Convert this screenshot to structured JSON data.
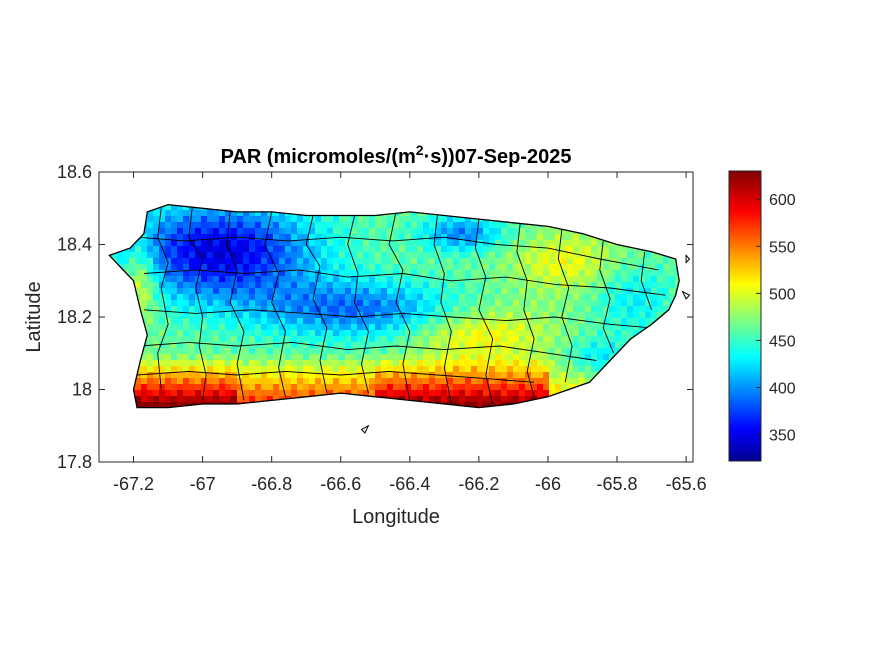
{
  "chart_data": {
    "type": "heatmap",
    "title": {
      "prefix": "PAR (micromoles/(m",
      "superscript": "2",
      "suffix": "·s))07-Sep-2025"
    },
    "xlabel": "Longitude",
    "ylabel": "Latitude",
    "xlim": [
      -67.3,
      -65.58
    ],
    "ylim": [
      17.8,
      18.6
    ],
    "xticks": [
      -67.2,
      -67,
      -66.8,
      -66.6,
      -66.4,
      -66.2,
      -66,
      -65.8,
      -65.6
    ],
    "xtick_labels": [
      "-67.2",
      "-67",
      "-66.8",
      "-66.6",
      "-66.4",
      "-66.2",
      "-66",
      "-65.8",
      "-65.6"
    ],
    "yticks": [
      17.8,
      18,
      18.2,
      18.4,
      18.6
    ],
    "ytick_labels": [
      "17.8",
      "18",
      "18.2",
      "18.4",
      "18.6"
    ],
    "colorbar": {
      "colormap": "jet",
      "clim": [
        322,
        630
      ],
      "ticks": [
        350,
        400,
        450,
        500,
        550,
        600
      ],
      "tick_labels": [
        "350",
        "400",
        "450",
        "500",
        "550",
        "600"
      ]
    },
    "field_description_values": {
      "south_coast_west": 610,
      "south_coast_center": 570,
      "northwest_interior": 360,
      "north_center": 400,
      "east": 450
    },
    "island_outline": [
      [
        -67.27,
        18.37
      ],
      [
        -67.21,
        18.39
      ],
      [
        -67.17,
        18.43
      ],
      [
        -67.16,
        18.49
      ],
      [
        -67.1,
        18.51
      ],
      [
        -67.0,
        18.5
      ],
      [
        -66.9,
        18.49
      ],
      [
        -66.8,
        18.49
      ],
      [
        -66.7,
        18.48
      ],
      [
        -66.6,
        18.48
      ],
      [
        -66.5,
        18.48
      ],
      [
        -66.4,
        18.49
      ],
      [
        -66.3,
        18.48
      ],
      [
        -66.2,
        18.47
      ],
      [
        -66.1,
        18.46
      ],
      [
        -66.0,
        18.45
      ],
      [
        -65.9,
        18.43
      ],
      [
        -65.8,
        18.4
      ],
      [
        -65.7,
        18.38
      ],
      [
        -65.63,
        18.36
      ],
      [
        -65.62,
        18.3
      ],
      [
        -65.63,
        18.26
      ],
      [
        -65.65,
        18.22
      ],
      [
        -65.7,
        18.18
      ],
      [
        -65.76,
        18.14
      ],
      [
        -65.82,
        18.08
      ],
      [
        -65.88,
        18.02
      ],
      [
        -66.0,
        17.98
      ],
      [
        -66.1,
        17.96
      ],
      [
        -66.2,
        17.95
      ],
      [
        -66.3,
        17.96
      ],
      [
        -66.4,
        17.97
      ],
      [
        -66.5,
        17.98
      ],
      [
        -66.6,
        17.99
      ],
      [
        -66.7,
        17.98
      ],
      [
        -66.8,
        17.97
      ],
      [
        -66.9,
        17.96
      ],
      [
        -67.0,
        17.96
      ],
      [
        -67.1,
        17.95
      ],
      [
        -67.19,
        17.95
      ],
      [
        -67.2,
        18.0
      ],
      [
        -67.18,
        18.08
      ],
      [
        -67.16,
        18.15
      ],
      [
        -67.18,
        18.22
      ],
      [
        -67.2,
        18.3
      ]
    ],
    "island_small": [
      [
        [
          -66.54,
          17.89
        ],
        [
          -66.52,
          17.9
        ],
        [
          -66.53,
          17.88
        ]
      ],
      [
        [
          -65.6,
          18.37
        ],
        [
          -65.59,
          18.36
        ],
        [
          -65.6,
          18.35
        ]
      ],
      [
        [
          -65.61,
          18.27
        ],
        [
          -65.59,
          18.26
        ],
        [
          -65.6,
          18.25
        ]
      ]
    ]
  }
}
